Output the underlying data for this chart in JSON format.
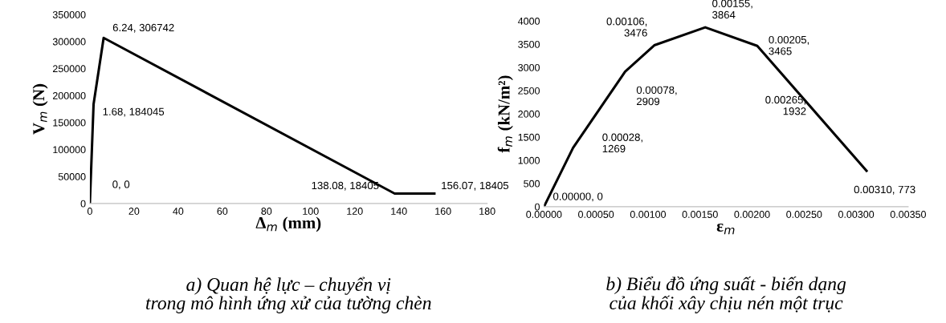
{
  "chart_data": [
    {
      "type": "line",
      "xlabel": "Δ$_{m}$ (mm)",
      "ylabel": "V$_{m}$ (N)",
      "x": [
        0,
        1.68,
        6.24,
        138.08,
        156.07
      ],
      "series": [
        {
          "color": "#000000",
          "values": [
            0,
            184045,
            306742,
            18405,
            18405
          ]
        }
      ],
      "xlim": [
        0,
        180
      ],
      "xticks": [
        0,
        20,
        40,
        60,
        80,
        100,
        120,
        140,
        160,
        180
      ],
      "ylim": [
        0,
        350000
      ],
      "yticks": [
        0,
        50000,
        100000,
        150000,
        200000,
        250000,
        300000,
        350000
      ],
      "grid": false,
      "legend": false,
      "marker": "none",
      "line_style": "solid",
      "annotations": [
        {
          "text": "0, 0",
          "x": 0,
          "y": 0
        },
        {
          "text": "1.68, 184045",
          "x": 1.68,
          "y": 184045
        },
        {
          "text": "6.24, 306742",
          "x": 6.24,
          "y": 306742
        },
        {
          "text": "138.08, 18405",
          "x": 138.08,
          "y": 18405
        },
        {
          "text": "156.07, 18405",
          "x": 156.07,
          "y": 18405
        },
        "a) Quan hệ lực – chuyển vị\ntrong mô hình ứng xử của tường chèn"
      ]
    },
    {
      "type": "line",
      "xlabel": "ε$_{m}$",
      "ylabel": "f$_{m}$ (kN/m²)",
      "x": [
        0,
        0.00028,
        0.00078,
        0.00106,
        0.00155,
        0.00205,
        0.0031
      ],
      "series": [
        {
          "color": "#000000",
          "values": [
            0,
            1269,
            2909,
            3476,
            3864,
            3465,
            773
          ]
        }
      ],
      "xlim": [
        0,
        0.0035
      ],
      "xticks": [
        {
          "value": 0,
          "label": "0.00000"
        },
        {
          "value": 0.0005,
          "label": "0.00050"
        },
        {
          "value": 0.001,
          "label": "0.00100"
        },
        {
          "value": 0.0015,
          "label": "0.00150"
        },
        {
          "value": 0.002,
          "label": "0.00200"
        },
        {
          "value": 0.0025,
          "label": "0.00250"
        },
        {
          "value": 0.003,
          "label": "0.00300"
        },
        {
          "value": 0.0035,
          "label": "0.00350"
        }
      ],
      "ylim": [
        0,
        4000
      ],
      "yticks": [
        0,
        500,
        1000,
        1500,
        2000,
        2500,
        3000,
        3500,
        4000
      ],
      "grid": false,
      "legend": false,
      "marker": "none",
      "line_style": "solid",
      "annotations": [
        {
          "text": "0.00000, 0",
          "x": 0,
          "y": 0
        },
        {
          "text": "0.00028,\n1269",
          "x": 0.00028,
          "y": 1269
        },
        {
          "text": "0.00078,\n2909",
          "x": 0.00078,
          "y": 2909
        },
        {
          "text": "0.00106,\n3476",
          "x": 0.00106,
          "y": 3476
        },
        {
          "text": "0.00155,\n3864",
          "x": 0.00155,
          "y": 3864
        },
        {
          "text": "0.00205,\n3465",
          "x": 0.00205,
          "y": 3465
        },
        {
          "text": "0.00265,\n1932",
          "x": 0.00265,
          "y": 1932
        },
        {
          "text": "0.00310, 773",
          "x": 0.0031,
          "y": 773
        },
        "b) Biểu đồ ứng suất - biến dạng\ncủa khối xây chịu nén một trục"
      ]
    }
  ]
}
